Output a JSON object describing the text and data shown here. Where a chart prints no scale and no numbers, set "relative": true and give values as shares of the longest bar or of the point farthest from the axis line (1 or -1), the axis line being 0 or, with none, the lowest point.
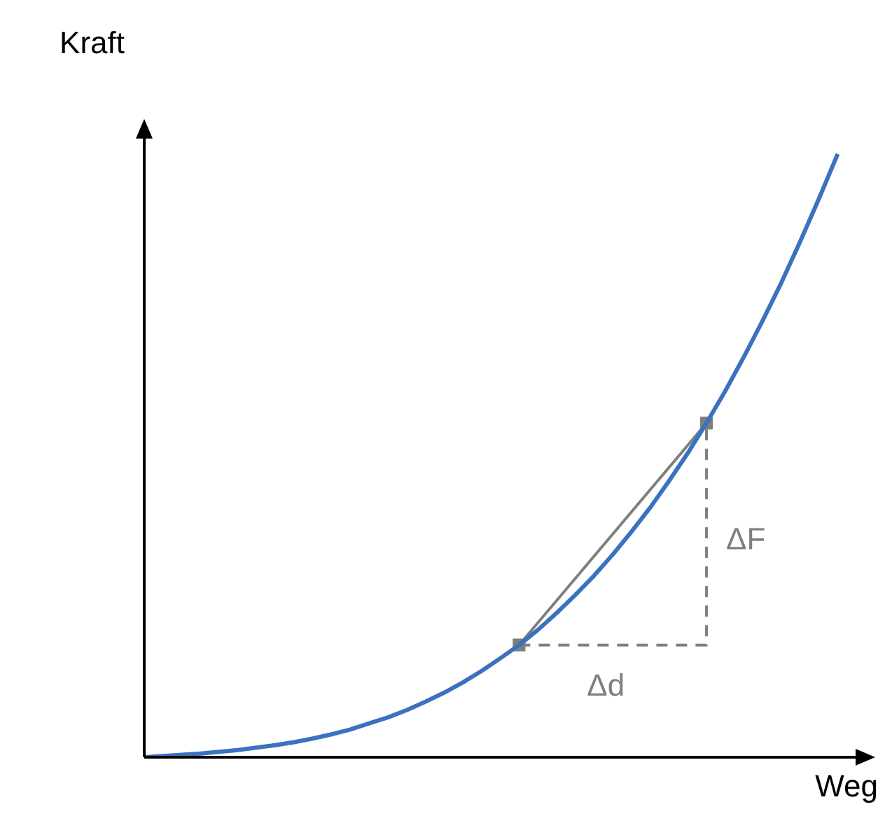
{
  "chart_data": {
    "type": "line",
    "relative": true,
    "xlabel": "Weg",
    "ylabel": "Kraft",
    "grid": false,
    "legend": false,
    "categories": [
      null,
      null,
      null,
      null,
      null,
      null,
      null,
      null,
      null,
      null,
      null,
      null,
      null,
      null,
      null,
      null,
      null,
      null,
      null,
      null,
      null,
      null,
      null,
      null,
      null,
      null,
      null,
      null,
      null,
      null,
      null,
      null,
      null,
      null,
      null,
      null,
      null,
      null,
      null,
      null
    ],
    "series": [
      {
        "type": "line",
        "color": "#3a72c0",
        "marker": "none",
        "line_style": "solid",
        "values": [
          0,
          0.002,
          0.004,
          0.006,
          0.009,
          0.012,
          0.016,
          0.02,
          0.025,
          0.031,
          0.038,
          0.046,
          0.056,
          0.066,
          0.078,
          0.092,
          0.107,
          0.124,
          0.143,
          0.164,
          0.186,
          0.211,
          0.239,
          0.269,
          0.301,
          0.336,
          0.374,
          0.414,
          0.458,
          0.504,
          0.554,
          0.607,
          0.664,
          0.724,
          0.787,
          0.855,
          0.926,
          1.0,
          null,
          null
        ]
      },
      {
        "type": "line",
        "color": "#7f7f7f",
        "marker": "square",
        "line_style": "solid",
        "values": [
          null,
          null,
          null,
          null,
          null,
          null,
          null,
          null,
          null,
          null,
          null,
          null,
          null,
          null,
          null,
          null,
          null,
          null,
          null,
          null,
          0.186,
          null,
          null,
          null,
          null,
          null,
          null,
          null,
          null,
          null,
          0.554,
          null,
          null,
          null,
          null,
          null,
          null,
          null,
          null,
          null
        ]
      },
      {
        "type": "step",
        "color": "#7f7f7f",
        "marker": "none",
        "line_style": "dashed",
        "values": [
          null,
          null,
          null,
          null,
          null,
          null,
          null,
          null,
          null,
          null,
          null,
          null,
          null,
          null,
          null,
          null,
          null,
          null,
          null,
          null,
          0.186,
          null,
          null,
          null,
          null,
          null,
          null,
          null,
          null,
          null,
          0.554,
          null,
          null,
          null,
          null,
          null,
          null,
          null,
          null,
          null
        ]
      }
    ],
    "annotations": [
      "ΔF",
      "Δd"
    ]
  }
}
